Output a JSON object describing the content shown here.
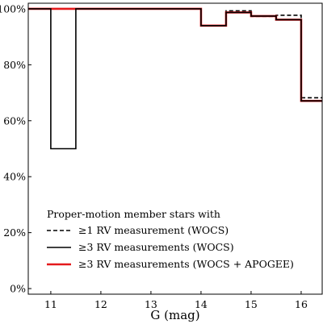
{
  "chart_data": {
    "type": "line",
    "step": true,
    "title": "",
    "xlabel": "G (mag)",
    "ylabel": "",
    "xlim": [
      10.55,
      16.42
    ],
    "ylim": [
      -2,
      102
    ],
    "x_ticks": [
      11,
      12,
      13,
      14,
      15,
      16
    ],
    "x_tick_labels": [
      "11",
      "12",
      "13",
      "14",
      "15",
      "16"
    ],
    "y_ticks": [
      0,
      20,
      40,
      60,
      80,
      100
    ],
    "y_tick_labels": [
      "0%",
      "20%",
      "40%",
      "60%",
      "80%",
      "100%"
    ],
    "grid": false,
    "legend": {
      "placement": "lower-left",
      "title": "Proper-motion member stars with",
      "entries": [
        {
          "label": "≥1 RV measurement (WOCS)",
          "color": "#000000",
          "dash": "dashed"
        },
        {
          "label": "≥3 RV measurements (WOCS)",
          "color": "#000000",
          "dash": "solid"
        },
        {
          "label": "≥3 RV measurements (WOCS + APOGEE)",
          "color": "#e41a1c",
          "dash": "solid"
        }
      ]
    },
    "series": [
      {
        "name": "≥1 RV measurement (WOCS)",
        "color": "#000000",
        "dash": "dashed",
        "bin_edges": [
          10.55,
          11.0,
          11.5,
          12.0,
          12.5,
          13.0,
          13.5,
          14.0,
          14.5,
          15.0,
          15.5,
          16.0,
          16.42
        ],
        "values": [
          100,
          100,
          100,
          100,
          100,
          100,
          100,
          94,
          99.3,
          97.3,
          97.7,
          68.2
        ]
      },
      {
        "name": "≥3 RV measurements (WOCS + APOGEE)",
        "color": "#e41a1c",
        "dash": "solid",
        "bin_edges": [
          10.55,
          11.0,
          11.5,
          12.0,
          12.5,
          13.0,
          13.5,
          14.0,
          14.5,
          15.0,
          15.5,
          16.0,
          16.42
        ],
        "values": [
          100,
          100,
          100,
          100,
          100,
          100,
          100,
          94,
          98.7,
          97.4,
          96.1,
          67.1
        ]
      },
      {
        "name": "≥3 RV measurements (WOCS)",
        "color": "#000000",
        "dash": "solid",
        "bin_edges": [
          10.55,
          11.0,
          11.5,
          12.0,
          12.5,
          13.0,
          13.5,
          14.0,
          14.5,
          15.0,
          15.5,
          16.0,
          16.42
        ],
        "values": [
          100,
          50,
          100,
          100,
          100,
          100,
          100,
          94,
          98.7,
          97.4,
          96.1,
          67.1
        ]
      }
    ]
  }
}
